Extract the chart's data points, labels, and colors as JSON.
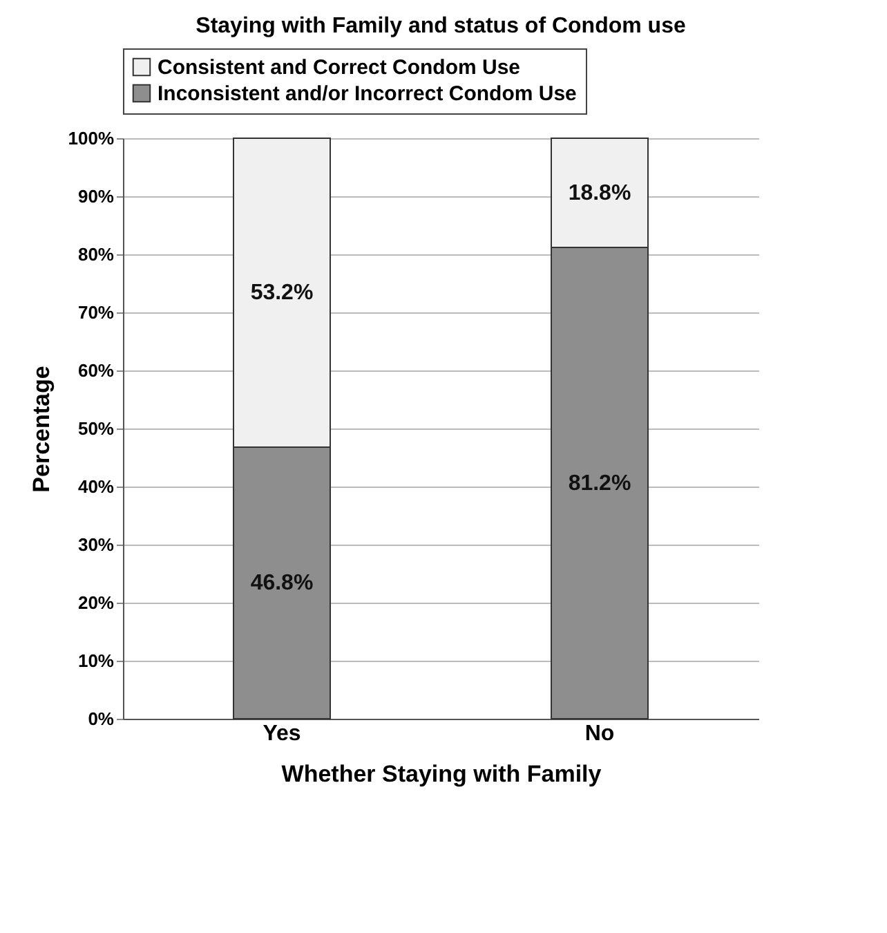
{
  "chart_data": {
    "type": "bar",
    "stacked": true,
    "title": "Staying with Family and status of Condom use",
    "xlabel": "Whether Staying with Family",
    "ylabel": "Percentage",
    "categories": [
      "Yes",
      "No"
    ],
    "series": [
      {
        "name": "Inconsistent and/or Incorrect Condom Use",
        "color": "#8e8e8e",
        "values": [
          46.8,
          81.2
        ],
        "value_labels": [
          "46.8%",
          "81.2%"
        ]
      },
      {
        "name": "Consistent and Correct Condom Use",
        "color": "#f0f0f0",
        "values": [
          53.2,
          18.8
        ],
        "value_labels": [
          "53.2%",
          "18.8%"
        ]
      }
    ],
    "ylim": [
      0,
      100
    ],
    "yticks": [
      {
        "value": 0,
        "label": "0%"
      },
      {
        "value": 10,
        "label": "10%"
      },
      {
        "value": 20,
        "label": "20%"
      },
      {
        "value": 30,
        "label": "30%"
      },
      {
        "value": 40,
        "label": "40%"
      },
      {
        "value": 50,
        "label": "50%"
      },
      {
        "value": 60,
        "label": "60%"
      },
      {
        "value": 70,
        "label": "70%"
      },
      {
        "value": 80,
        "label": "80%"
      },
      {
        "value": 90,
        "label": "90%"
      },
      {
        "value": 100,
        "label": "100%"
      }
    ],
    "grid": "y",
    "legend": "top"
  }
}
